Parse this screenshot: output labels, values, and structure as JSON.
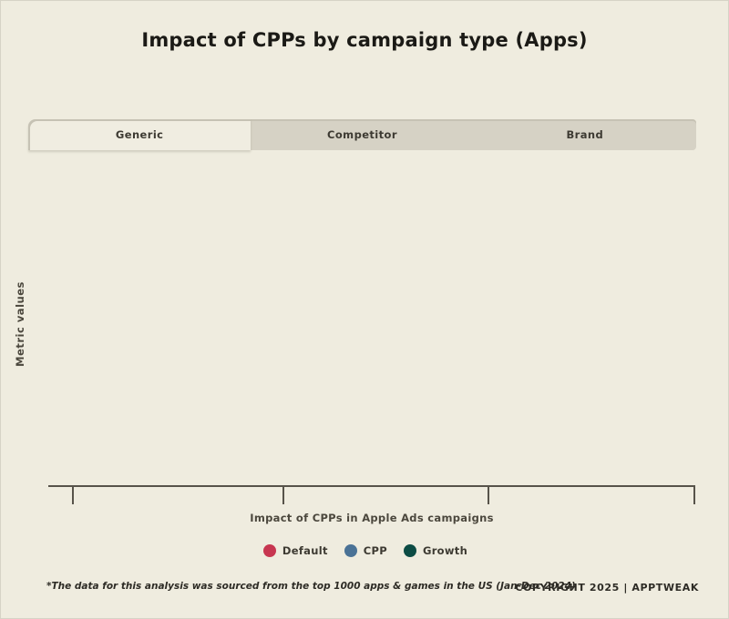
{
  "page": {
    "background": "#efecdf",
    "tab_inactive_bg": "#d6d2c5",
    "tab_active_bg": "#f0ede1",
    "axis_color": "#57534a"
  },
  "title": "Impact of CPPs by campaign type (Apps)",
  "tabs": {
    "items": [
      {
        "label": "Generic",
        "active": true
      },
      {
        "label": "Competitor",
        "active": false
      },
      {
        "label": "Brand",
        "active": false
      }
    ]
  },
  "chart_data": {
    "type": "scatter",
    "title": "Impact of CPPs by campaign type (Apps)",
    "xlabel": "Impact of CPPs in Apple Ads campaigns",
    "ylabel": "Metric values",
    "x_ticks": [
      "",
      "",
      "",
      ""
    ],
    "series": [
      {
        "name": "Default",
        "color": "#c73650",
        "values": []
      },
      {
        "name": "CPP",
        "color": "#4a7296",
        "values": []
      },
      {
        "name": "Growth",
        "color": "#0c4c44",
        "values": []
      }
    ],
    "grid": false,
    "legend_position": "bottom",
    "plot_area_empty": true
  },
  "legend": {
    "items": [
      {
        "label": "Default",
        "color": "#c73650"
      },
      {
        "label": "CPP",
        "color": "#4a7296"
      },
      {
        "label": "Growth",
        "color": "#0c4c44"
      }
    ]
  },
  "footer": {
    "note": "*The data for this analysis was sourced from the top 1000 apps & games in the US (Jan-Dec 2024)",
    "copyright": "COPYRIGHT 2025 | APPTWEAK"
  }
}
